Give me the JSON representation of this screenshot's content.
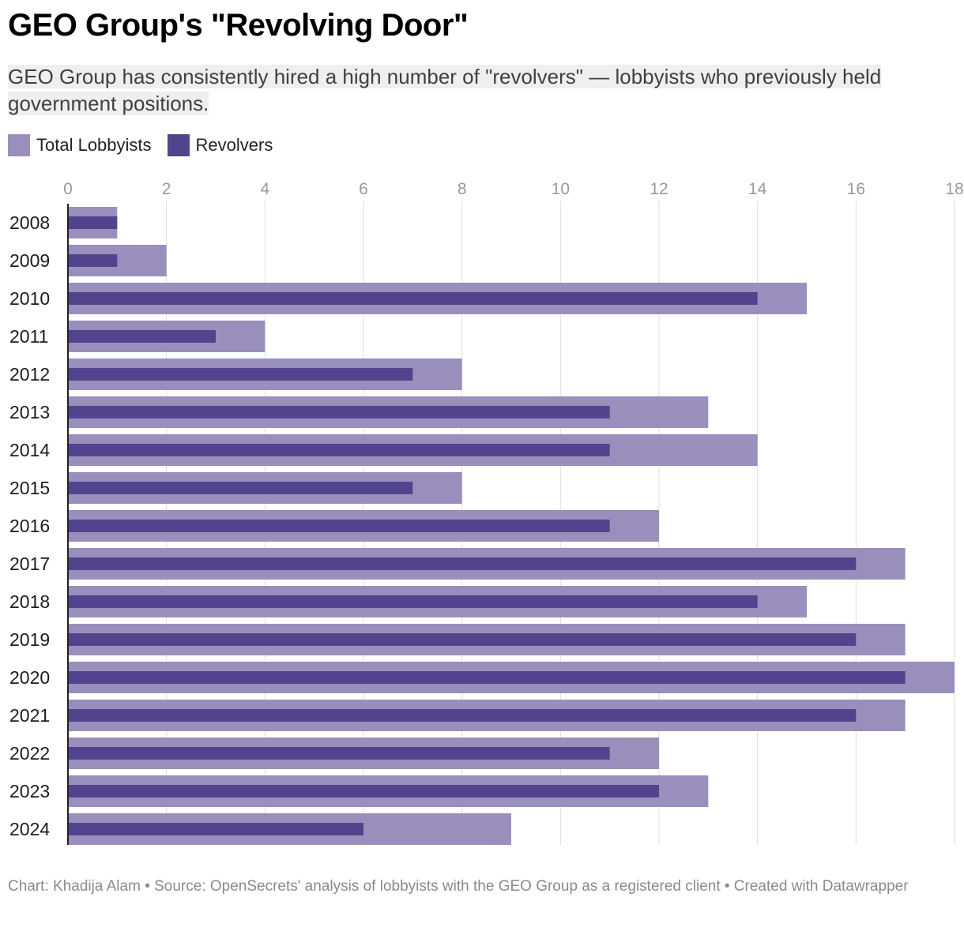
{
  "title": "GEO Group's \"Revolving Door\"",
  "subtitle": "GEO Group has consistently hired a high number of \"revolvers\" — lobbyists who previously held government positions.",
  "footer": "Chart: Khadija Alam • Source: OpenSecrets' analysis of lobbyists with the GEO Group as a registered client • Created with Datawrapper",
  "colors": {
    "total": "#9a8fbc",
    "revolvers": "#52448c",
    "grid": "#dedede",
    "tick_text": "#9a9a9a",
    "axis": "#222222"
  },
  "chart_data": {
    "type": "bar",
    "orientation": "horizontal",
    "categories": [
      "2008",
      "2009",
      "2010",
      "2011",
      "2012",
      "2013",
      "2014",
      "2015",
      "2016",
      "2017",
      "2018",
      "2019",
      "2020",
      "2021",
      "2022",
      "2023",
      "2024"
    ],
    "series": [
      {
        "name": "Total Lobbyists",
        "values": [
          1,
          2,
          15,
          4,
          8,
          13,
          14,
          8,
          12,
          17,
          15,
          17,
          18,
          17,
          12,
          13,
          9
        ]
      },
      {
        "name": "Revolvers",
        "values": [
          1,
          1,
          14,
          3,
          7,
          11,
          11,
          7,
          11,
          16,
          14,
          16,
          17,
          16,
          11,
          12,
          6
        ]
      }
    ],
    "xlim": [
      0,
      18
    ],
    "xticks": [
      "0",
      "2",
      "4",
      "6",
      "8",
      "10",
      "12",
      "14",
      "16",
      "18"
    ],
    "grid": true,
    "legend_position": "top-left"
  }
}
